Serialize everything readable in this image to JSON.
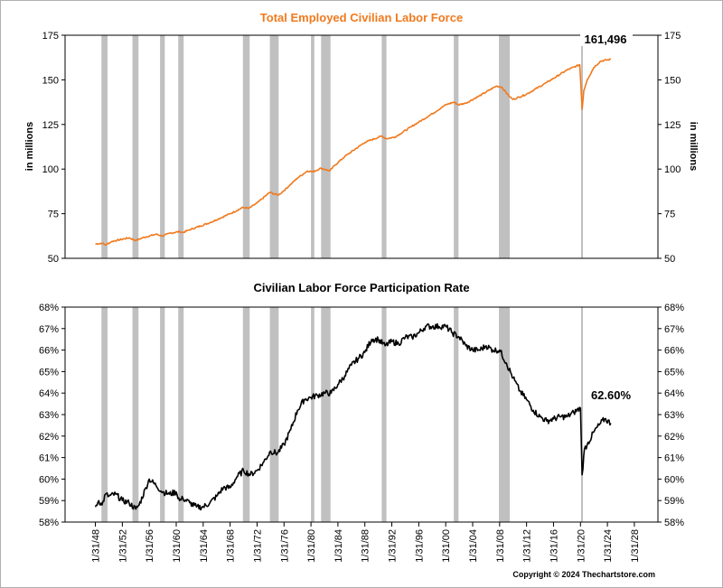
{
  "chart_data": [
    {
      "type": "line",
      "title": "Total Employed Civilian Labor Force",
      "ylabel": "in millions",
      "ylim": [
        50,
        175
      ],
      "yticks": [
        "175",
        "150",
        "125",
        "100",
        "75",
        "50"
      ],
      "callout": "161,496",
      "recessions": [
        [
          1948.9,
          1949.8
        ],
        [
          1953.5,
          1954.4
        ],
        [
          1957.6,
          1958.3
        ],
        [
          1960.3,
          1961.1
        ],
        [
          1969.9,
          1970.9
        ],
        [
          1973.9,
          1975.2
        ],
        [
          1980.0,
          1980.5
        ],
        [
          1981.5,
          1982.9
        ],
        [
          1990.5,
          1991.2
        ],
        [
          2001.2,
          2001.9
        ],
        [
          2007.9,
          2009.5
        ],
        [
          2020.1,
          2020.3
        ]
      ],
      "series": [
        {
          "color": "#f07a1e",
          "x": [
            1948.0,
            1949.0,
            1949.5,
            1950.5,
            1953.0,
            1954.0,
            1955.0,
            1957.0,
            1958.0,
            1959.0,
            1960.5,
            1961.0,
            1962.0,
            1965.0,
            1968.0,
            1969.9,
            1970.8,
            1972.0,
            1973.9,
            1974.6,
            1975.2,
            1976.0,
            1978.0,
            1979.5,
            1980.3,
            1981.5,
            1982.8,
            1983.5,
            1985.0,
            1988.0,
            1990.5,
            1991.2,
            1992.5,
            1995.0,
            1998.0,
            2000.0,
            2001.2,
            2001.9,
            2003.0,
            2005.0,
            2007.5,
            2008.3,
            2009.5,
            2010.0,
            2012.0,
            2015.0,
            2018.0,
            2019.9,
            2020.25,
            2020.5,
            2021.0,
            2022.0,
            2023.0,
            2024.5
          ],
          "values": [
            58.0,
            58.5,
            57.5,
            59.5,
            61.5,
            60.0,
            61.5,
            63.5,
            62.5,
            64.0,
            65.0,
            64.5,
            66.0,
            70.0,
            75.0,
            78.5,
            78.0,
            81.0,
            87.0,
            86.0,
            85.5,
            88.0,
            95.0,
            99.0,
            98.5,
            100.5,
            99.0,
            102.0,
            107.0,
            115.0,
            118.5,
            117.0,
            118.0,
            124.0,
            131.0,
            136.0,
            137.5,
            136.0,
            137.0,
            141.0,
            146.5,
            146.0,
            140.5,
            139.0,
            142.0,
            148.5,
            155.5,
            158.5,
            133.5,
            144.0,
            150.0,
            157.0,
            160.5,
            161.5
          ]
        }
      ]
    },
    {
      "type": "line",
      "title": "Civilian Labor Force Participation Rate",
      "ylim": [
        58,
        68
      ],
      "yticks": [
        "68%",
        "67%",
        "66%",
        "65%",
        "64%",
        "63%",
        "62%",
        "61%",
        "60%",
        "59%",
        "58%"
      ],
      "callout": "62.60%",
      "xlabels": [
        "1/31/48",
        "1/31/52",
        "1/31/56",
        "1/31/60",
        "1/31/64",
        "1/31/68",
        "1/31/72",
        "1/31/76",
        "1/31/80",
        "1/31/84",
        "1/31/88",
        "1/31/92",
        "1/31/96",
        "1/31/00",
        "1/31/04",
        "1/31/08",
        "1/31/12",
        "1/31/16",
        "1/31/20",
        "1/31/24",
        "1/31/28"
      ],
      "xvalues": [
        1948,
        1952,
        1956,
        1960,
        1964,
        1968,
        1972,
        1976,
        1980,
        1984,
        1988,
        1992,
        1996,
        2000,
        2004,
        2008,
        2012,
        2016,
        2020,
        2024,
        2028
      ],
      "series": [
        {
          "color": "#000000",
          "x": [
            1948.0,
            1948.5,
            1949.0,
            1949.5,
            1950.0,
            1951.0,
            1952.0,
            1953.0,
            1954.0,
            1954.5,
            1955.5,
            1956.0,
            1957.0,
            1958.0,
            1959.0,
            1960.0,
            1960.5,
            1961.0,
            1962.0,
            1963.0,
            1964.0,
            1965.0,
            1966.0,
            1967.0,
            1968.0,
            1969.0,
            1970.0,
            1971.0,
            1972.0,
            1973.0,
            1974.0,
            1975.0,
            1976.0,
            1977.0,
            1978.0,
            1979.0,
            1980.0,
            1981.0,
            1982.0,
            1983.0,
            1984.0,
            1985.0,
            1986.0,
            1987.0,
            1988.0,
            1989.0,
            1990.0,
            1991.0,
            1992.0,
            1993.0,
            1994.0,
            1995.0,
            1996.0,
            1997.0,
            1998.0,
            1999.0,
            2000.0,
            2001.0,
            2002.0,
            2003.0,
            2004.0,
            2005.0,
            2006.0,
            2007.0,
            2008.0,
            2009.0,
            2010.0,
            2011.0,
            2012.0,
            2013.0,
            2014.0,
            2015.0,
            2016.0,
            2017.0,
            2018.0,
            2019.0,
            2020.0,
            2020.25,
            2020.6,
            2021.0,
            2022.0,
            2023.0,
            2023.6,
            2024.5
          ],
          "values": [
            58.7,
            59.0,
            58.8,
            59.3,
            59.2,
            59.3,
            59.0,
            58.9,
            58.6,
            58.8,
            59.6,
            60.0,
            59.7,
            59.4,
            59.3,
            59.4,
            59.0,
            59.1,
            58.9,
            58.7,
            58.7,
            58.9,
            59.2,
            59.6,
            59.6,
            60.1,
            60.4,
            60.2,
            60.4,
            60.8,
            61.3,
            61.2,
            61.6,
            62.3,
            63.2,
            63.7,
            63.8,
            63.9,
            64.0,
            64.0,
            64.4,
            64.8,
            65.3,
            65.6,
            65.9,
            66.5,
            66.5,
            66.2,
            66.4,
            66.3,
            66.6,
            66.6,
            66.8,
            67.1,
            67.1,
            67.1,
            67.1,
            66.8,
            66.6,
            66.2,
            66.0,
            66.0,
            66.2,
            66.0,
            66.0,
            65.4,
            64.7,
            64.1,
            63.7,
            63.2,
            62.9,
            62.7,
            62.8,
            62.9,
            62.9,
            63.1,
            63.3,
            60.2,
            61.4,
            61.6,
            62.2,
            62.6,
            62.8,
            62.6
          ]
        }
      ]
    }
  ],
  "footer": {
    "copyright": "Copyright © 2024 Thechartstore.com"
  },
  "style": {
    "accent": "#f07a1e",
    "recession_fill": "#c0c0c0"
  }
}
